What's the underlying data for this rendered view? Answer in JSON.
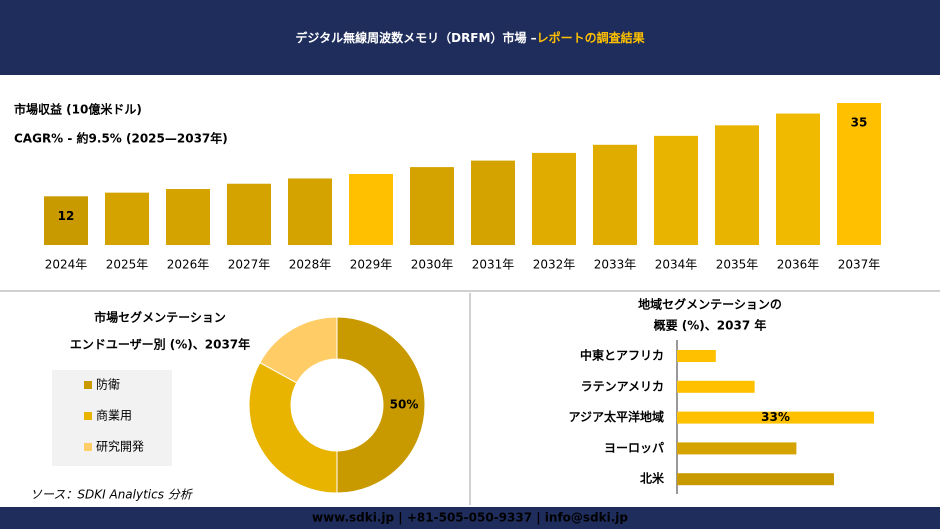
{
  "header": {
    "title": "デジタル無線周波数メモリ（DRFM）市場 –",
    "title_highlight": "レポートの調査結果"
  },
  "chart_data": [
    {
      "type": "bar",
      "subtitle": "市場収益 (10億米ドル)",
      "note": "CAGR% - 約9.5% (2025—2037年)",
      "categories": [
        "2024年",
        "2025年",
        "2026年",
        "2027年",
        "2028年",
        "2029年",
        "2030年",
        "2031年",
        "2032年",
        "2033年",
        "2034年",
        "2035年",
        "2036年",
        "2037年"
      ],
      "values": [
        12,
        12.9,
        13.8,
        15.1,
        16.4,
        17.5,
        19.2,
        20.8,
        22.7,
        24.7,
        26.9,
        29.5,
        32.4,
        35
      ],
      "value_labels": [
        "12",
        null,
        null,
        null,
        null,
        null,
        null,
        null,
        null,
        null,
        null,
        null,
        null,
        "35"
      ],
      "colors": [
        "#c99a00",
        "#d4a300",
        "#d4a300",
        "#d4a300",
        "#d4a300",
        "#ffc000",
        "#d4a300",
        "#d4a300",
        "#e0ac00",
        "#e0ac00",
        "#e8b400",
        "#e8b400",
        "#f0ba00",
        "#ffc000"
      ]
    },
    {
      "type": "pie",
      "title": "市場セグメンテーション",
      "subtitle": "エンドユーザー別 (%)、2037年",
      "categories": [
        "防衛",
        "商業用",
        "研究開発"
      ],
      "values": [
        50,
        33,
        17
      ],
      "value_labels": [
        "50%",
        null,
        null
      ],
      "colors": [
        "#c99a00",
        "#e8b400",
        "#ffcc66"
      ]
    },
    {
      "type": "hbar",
      "title": "地域セグメンテーションの",
      "subtitle": "概要 (%)、2037 年",
      "categories": [
        "中東とアフリカ",
        "ラテンアメリカ",
        "アジア太平洋地域",
        "ヨーロッパ",
        "北米"
      ],
      "values": [
        6.5,
        13,
        33,
        20,
        26.3
      ],
      "value_labels": [
        null,
        null,
        "33%",
        null,
        null
      ],
      "colors": [
        "#ffc000",
        "#ffc000",
        "#ffc000",
        "#d4a300",
        "#c99a00"
      ]
    }
  ],
  "source": "ソース：SDKI Analytics 分析",
  "footer": "www.sdki.jp | +81-505-050-9337 | info@sdki.jp"
}
